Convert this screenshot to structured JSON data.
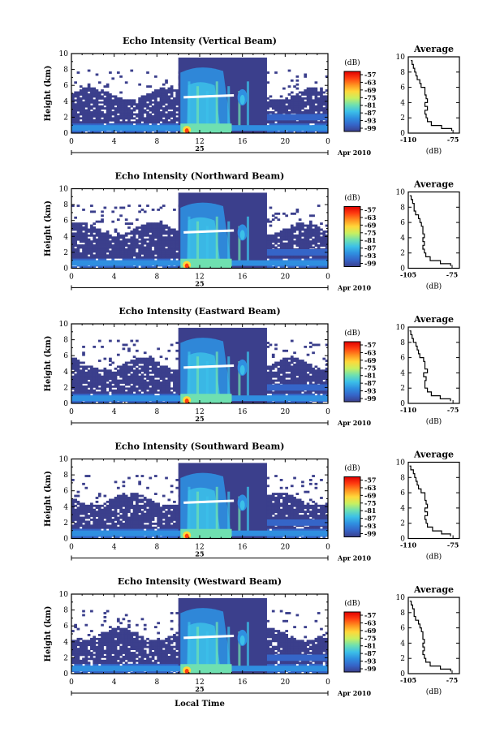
{
  "chart_data": [
    {
      "type": "heatmap",
      "title": "Echo Intensity (Vertical Beam)",
      "ylabel": "Height (km)",
      "x_ticks": [
        "0",
        "4",
        "8",
        "12",
        "16",
        "20",
        "0"
      ],
      "y_ticks": [
        "0",
        "2",
        "4",
        "6",
        "8",
        "10"
      ],
      "xlim": [
        0,
        24
      ],
      "ylim": [
        0,
        10
      ],
      "date_day": "25",
      "date_month": "Apr 2010",
      "colorbar_unit": "(dB)",
      "colorbar_ticks": [
        "-57",
        "-63",
        "-69",
        "-75",
        "-81",
        "-87",
        "-93",
        "-99"
      ],
      "profile": {
        "title": "Average",
        "xlabel": "(dB)",
        "x_ticks": [
          "-110",
          "-75"
        ],
        "xlim": [
          -110,
          -70
        ],
        "y_ticks": [
          "0",
          "2",
          "4",
          "6",
          "8",
          "10"
        ],
        "height": [
          0.3,
          0.6,
          1.0,
          1.5,
          2.0,
          2.5,
          3.0,
          3.5,
          4.0,
          4.5,
          5.0,
          5.5,
          6.0,
          6.5,
          7.0,
          7.5,
          8.0,
          8.5,
          9.0,
          9.5
        ],
        "value": [
          -76,
          -84,
          -92,
          -95,
          -96,
          -97,
          -95,
          -97,
          -95,
          -96,
          -97,
          -97,
          -100,
          -101,
          -103,
          -104,
          -105,
          -106,
          -107,
          -108
        ]
      }
    },
    {
      "type": "heatmap",
      "title": "Echo Intensity (Northward Beam)",
      "ylabel": "Height (km)",
      "x_ticks": [
        "0",
        "4",
        "8",
        "12",
        "16",
        "20",
        "0"
      ],
      "y_ticks": [
        "0",
        "2",
        "4",
        "6",
        "8",
        "10"
      ],
      "xlim": [
        0,
        24
      ],
      "ylim": [
        0,
        10
      ],
      "date_day": "25",
      "date_month": "Apr 2010",
      "colorbar_unit": "(dB)",
      "colorbar_ticks": [
        "-57",
        "-63",
        "-69",
        "-75",
        "-81",
        "-87",
        "-93",
        "-99"
      ],
      "profile": {
        "title": "Average",
        "xlabel": "(dB)",
        "x_ticks": [
          "-105",
          "-75"
        ],
        "xlim": [
          -105,
          -70
        ],
        "y_ticks": [
          "0",
          "2",
          "4",
          "6",
          "8",
          "10"
        ],
        "height": [
          0.3,
          0.6,
          1.0,
          1.5,
          2.0,
          2.5,
          3.0,
          3.5,
          4.0,
          4.5,
          5.0,
          5.5,
          6.0,
          6.5,
          7.0,
          7.5,
          8.0,
          8.5,
          9.0,
          9.5
        ],
        "value": [
          -76,
          -83,
          -90,
          -93,
          -94,
          -95,
          -94,
          -95,
          -94,
          -95,
          -95,
          -96,
          -97,
          -98,
          -100,
          -101,
          -101,
          -102,
          -103,
          -104
        ]
      }
    },
    {
      "type": "heatmap",
      "title": "Echo Intensity (Eastward Beam)",
      "ylabel": "Height (km)",
      "x_ticks": [
        "0",
        "4",
        "8",
        "12",
        "16",
        "20",
        "0"
      ],
      "y_ticks": [
        "0",
        "2",
        "4",
        "6",
        "8",
        "10"
      ],
      "xlim": [
        0,
        24
      ],
      "ylim": [
        0,
        10
      ],
      "date_day": "25",
      "date_month": "Apr 2010",
      "colorbar_unit": "(dB)",
      "colorbar_ticks": [
        "-57",
        "-63",
        "-69",
        "-75",
        "-81",
        "-87",
        "-93",
        "-99"
      ],
      "profile": {
        "title": "Average",
        "xlabel": "(dB)",
        "x_ticks": [
          "-110",
          "-75"
        ],
        "xlim": [
          -110,
          -70
        ],
        "y_ticks": [
          "0",
          "2",
          "4",
          "6",
          "8",
          "10"
        ],
        "height": [
          0.3,
          0.6,
          1.0,
          1.5,
          2.0,
          2.5,
          3.0,
          3.5,
          4.0,
          4.5,
          5.0,
          5.5,
          6.0,
          6.5,
          7.0,
          7.5,
          8.0,
          8.5,
          9.0,
          9.5
        ],
        "value": [
          -77,
          -85,
          -92,
          -95,
          -97,
          -97,
          -96,
          -98,
          -95,
          -97,
          -97,
          -98,
          -101,
          -102,
          -103,
          -104,
          -106,
          -107,
          -108,
          -109
        ]
      }
    },
    {
      "type": "heatmap",
      "title": "Echo Intensity (Southward Beam)",
      "ylabel": "Height (km)",
      "x_ticks": [
        "0",
        "4",
        "8",
        "12",
        "16",
        "20",
        "0"
      ],
      "y_ticks": [
        "0",
        "2",
        "4",
        "6",
        "8",
        "10"
      ],
      "xlim": [
        0,
        24
      ],
      "ylim": [
        0,
        10
      ],
      "date_day": "25",
      "date_month": "Apr 2010",
      "colorbar_unit": "(dB)",
      "colorbar_ticks": [
        "-57",
        "-63",
        "-69",
        "-75",
        "-81",
        "-87",
        "-93",
        "-99"
      ],
      "profile": {
        "title": "Average",
        "xlabel": "(dB)",
        "x_ticks": [
          "-110",
          "-75"
        ],
        "xlim": [
          -110,
          -70
        ],
        "y_ticks": [
          "0",
          "2",
          "4",
          "6",
          "8",
          "10"
        ],
        "height": [
          0.3,
          0.6,
          1.0,
          1.5,
          2.0,
          2.5,
          3.0,
          3.5,
          4.0,
          4.5,
          5.0,
          5.5,
          6.0,
          6.5,
          7.0,
          7.5,
          8.0,
          8.5,
          9.0,
          9.5
        ],
        "value": [
          -77,
          -84,
          -91,
          -95,
          -96,
          -97,
          -95,
          -97,
          -95,
          -96,
          -97,
          -97,
          -100,
          -102,
          -103,
          -104,
          -105,
          -106,
          -108,
          -109
        ]
      }
    },
    {
      "type": "heatmap",
      "title": "Echo Intensity (Westward Beam)",
      "ylabel": "Height (km)",
      "x_ticks": [
        "0",
        "4",
        "8",
        "12",
        "16",
        "20",
        "0"
      ],
      "y_ticks": [
        "0",
        "2",
        "4",
        "6",
        "8",
        "10"
      ],
      "xlim": [
        0,
        24
      ],
      "ylim": [
        0,
        10
      ],
      "date_day": "25",
      "date_month": "Apr 2010",
      "colorbar_unit": "(dB)",
      "colorbar_ticks": [
        "-57",
        "-63",
        "-69",
        "-75",
        "-81",
        "-87",
        "-93",
        "-99"
      ],
      "profile": {
        "title": "Average",
        "xlabel": "(dB)",
        "x_ticks": [
          "-105",
          "-75"
        ],
        "xlim": [
          -105,
          -70
        ],
        "y_ticks": [
          "0",
          "2",
          "4",
          "6",
          "8",
          "10"
        ],
        "height": [
          0.3,
          0.6,
          1.0,
          1.5,
          2.0,
          2.5,
          3.0,
          3.5,
          4.0,
          4.5,
          5.0,
          5.5,
          6.0,
          6.5,
          7.0,
          7.5,
          8.0,
          8.5,
          9.0,
          9.5
        ],
        "value": [
          -76,
          -83,
          -90,
          -93,
          -94,
          -95,
          -94,
          -95,
          -94,
          -95,
          -95,
          -96,
          -97,
          -98,
          -100,
          -101,
          -101,
          -102,
          -103,
          -104
        ]
      }
    }
  ],
  "xlabel": "Local Time",
  "colors": {
    "colormap": [
      "#3b3f8c",
      "#3565c8",
      "#2f8fe0",
      "#3cc0e8",
      "#6fe0b0",
      "#c8f060",
      "#ffd83a",
      "#ff9020",
      "#ff3c10",
      "#e00000"
    ]
  }
}
